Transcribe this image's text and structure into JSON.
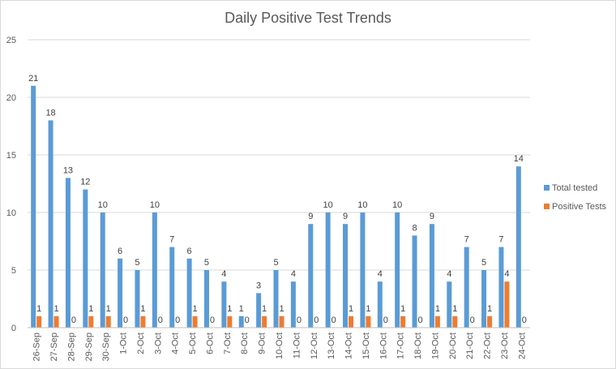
{
  "chart_data": {
    "type": "bar",
    "title": "Daily Positive Test Trends",
    "xlabel": "",
    "ylabel": "",
    "ylim": [
      0,
      25
    ],
    "yticks": [
      0,
      5,
      10,
      15,
      20,
      25
    ],
    "grid": true,
    "legend_position": "right",
    "categories": [
      "26-Sep",
      "27-Sep",
      "28-Sep",
      "29-Sep",
      "30-Sep",
      "1-Oct",
      "2-Oct",
      "3-Oct",
      "4-Oct",
      "5-Oct",
      "6-Oct",
      "7-Oct",
      "8-Oct",
      "9-Oct",
      "10-Oct",
      "11-Oct",
      "12-Oct",
      "13-Oct",
      "14-Oct",
      "15-Oct",
      "16-Oct",
      "17-Oct",
      "18-Oct",
      "19-Oct",
      "20-Oct",
      "21-Oct",
      "22-Oct",
      "23-Oct",
      "24-Oct"
    ],
    "series": [
      {
        "name": "Total tested",
        "color": "#5b9bd5",
        "values": [
          21,
          18,
          13,
          12,
          10,
          6,
          5,
          10,
          7,
          6,
          5,
          4,
          1,
          3,
          5,
          4,
          9,
          10,
          9,
          10,
          4,
          10,
          8,
          9,
          4,
          7,
          5,
          7,
          14
        ]
      },
      {
        "name": "Positive Tests",
        "color": "#ed7d31",
        "values": [
          1,
          1,
          0,
          1,
          1,
          0,
          1,
          0,
          0,
          1,
          0,
          1,
          0,
          1,
          1,
          0,
          0,
          0,
          1,
          1,
          0,
          1,
          0,
          1,
          1,
          0,
          1,
          4,
          0
        ]
      }
    ]
  }
}
